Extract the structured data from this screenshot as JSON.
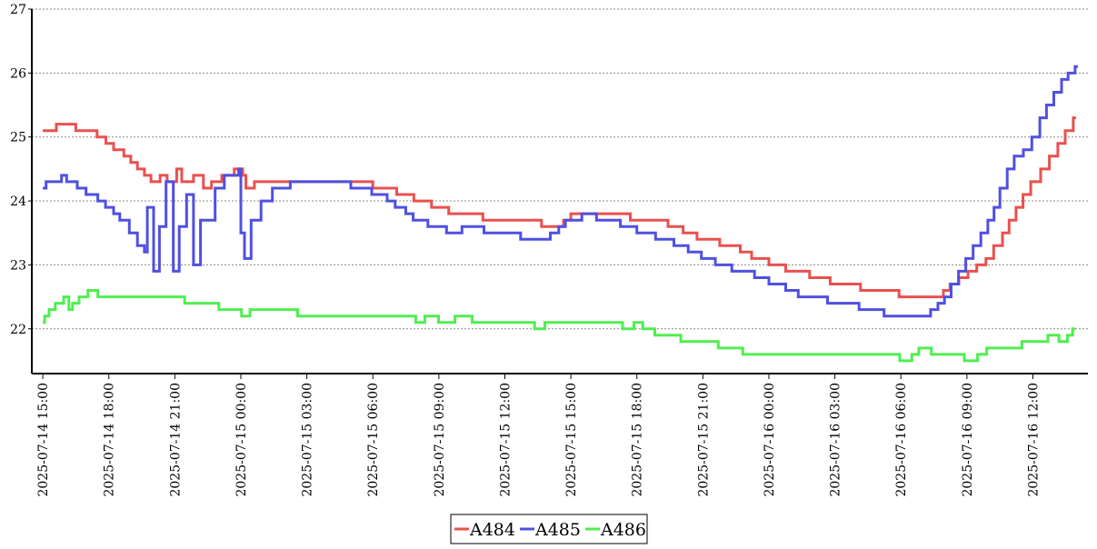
{
  "chart_data": {
    "type": "line",
    "title": "",
    "xlabel": "",
    "ylabel": "",
    "x_range": [
      "2025-07-14 14:30",
      "2025-07-16 14:30"
    ],
    "ylim": [
      21.3,
      27
    ],
    "y_ticks": [
      22,
      23,
      24,
      25,
      26,
      27
    ],
    "x_ticks": [
      {
        "at": "2025-07-14 15:00",
        "label": "2025-07-14 15:00"
      },
      {
        "at": "2025-07-14 18:00",
        "label": "2025-07-14 18:00"
      },
      {
        "at": "2025-07-14 21:00",
        "label": "2025-07-14 21:00"
      },
      {
        "at": "2025-07-15 00:00",
        "label": "2025-07-15 00:00"
      },
      {
        "at": "2025-07-15 03:00",
        "label": "2025-07-15 03:00"
      },
      {
        "at": "2025-07-15 06:00",
        "label": "2025-07-15 06:00"
      },
      {
        "at": "2025-07-15 09:00",
        "label": "2025-07-15 09:00"
      },
      {
        "at": "2025-07-15 12:00",
        "label": "2025-07-15 12:00"
      },
      {
        "at": "2025-07-15 15:00",
        "label": "2025-07-15 15:00"
      },
      {
        "at": "2025-07-15 18:00",
        "label": "2025-07-15 18:00"
      },
      {
        "at": "2025-07-15 21:00",
        "label": "2025-07-15 21:00"
      },
      {
        "at": "2025-07-16 00:00",
        "label": "2025-07-16 00:00"
      },
      {
        "at": "2025-07-16 03:00",
        "label": "2025-07-16 03:00"
      },
      {
        "at": "2025-07-16 06:00",
        "label": "2025-07-16 06:00"
      },
      {
        "at": "2025-07-16 09:00",
        "label": "2025-07-16 09:00"
      },
      {
        "at": "2025-07-16 12:00",
        "label": "2025-07-16 12:00"
      }
    ],
    "grid": {
      "horizontal": true,
      "vertical": false,
      "style": "dotted"
    },
    "legend_position": "bottom-center",
    "series": [
      {
        "name": "A484",
        "color": "#e8514f",
        "points": [
          [
            "2025-07-14 15:00",
            25.1
          ],
          [
            "2025-07-14 15:37",
            25.2
          ],
          [
            "2025-07-14 16:30",
            25.1
          ],
          [
            "2025-07-14 17:28",
            25.0
          ],
          [
            "2025-07-14 17:52",
            24.9
          ],
          [
            "2025-07-14 18:13",
            24.8
          ],
          [
            "2025-07-14 18:41",
            24.7
          ],
          [
            "2025-07-14 19:00",
            24.6
          ],
          [
            "2025-07-14 19:18",
            24.5
          ],
          [
            "2025-07-14 19:37",
            24.4
          ],
          [
            "2025-07-14 19:55",
            24.3
          ],
          [
            "2025-07-14 20:20",
            24.4
          ],
          [
            "2025-07-14 20:39",
            24.3
          ],
          [
            "2025-07-14 21:05",
            24.5
          ],
          [
            "2025-07-14 21:19",
            24.3
          ],
          [
            "2025-07-14 21:51",
            24.4
          ],
          [
            "2025-07-14 22:18",
            24.2
          ],
          [
            "2025-07-14 22:40",
            24.3
          ],
          [
            "2025-07-14 23:08",
            24.4
          ],
          [
            "2025-07-14 23:42",
            24.5
          ],
          [
            "2025-07-15 00:05",
            24.4
          ],
          [
            "2025-07-15 00:14",
            24.2
          ],
          [
            "2025-07-15 00:37",
            24.3
          ],
          [
            "2025-07-15 06:00",
            24.2
          ],
          [
            "2025-07-15 07:05",
            24.1
          ],
          [
            "2025-07-15 07:52",
            24.0
          ],
          [
            "2025-07-15 08:40",
            23.9
          ],
          [
            "2025-07-15 09:27",
            23.8
          ],
          [
            "2025-07-15 11:00",
            23.7
          ],
          [
            "2025-07-15 13:40",
            23.6
          ],
          [
            "2025-07-15 14:40",
            23.7
          ],
          [
            "2025-07-15 15:00",
            23.8
          ],
          [
            "2025-07-15 17:42",
            23.7
          ],
          [
            "2025-07-15 19:25",
            23.6
          ],
          [
            "2025-07-15 20:06",
            23.5
          ],
          [
            "2025-07-15 20:44",
            23.4
          ],
          [
            "2025-07-15 21:46",
            23.3
          ],
          [
            "2025-07-15 22:42",
            23.2
          ],
          [
            "2025-07-15 23:13",
            23.1
          ],
          [
            "2025-07-16 00:00",
            23.0
          ],
          [
            "2025-07-16 00:46",
            22.9
          ],
          [
            "2025-07-16 01:51",
            22.8
          ],
          [
            "2025-07-16 02:47",
            22.7
          ],
          [
            "2025-07-16 04:10",
            22.6
          ],
          [
            "2025-07-16 05:55",
            22.5
          ],
          [
            "2025-07-16 07:56",
            22.6
          ],
          [
            "2025-07-16 08:14",
            22.7
          ],
          [
            "2025-07-16 08:38",
            22.8
          ],
          [
            "2025-07-16 09:03",
            22.9
          ],
          [
            "2025-07-16 09:27",
            23.0
          ],
          [
            "2025-07-16 09:52",
            23.1
          ],
          [
            "2025-07-16 10:13",
            23.3
          ],
          [
            "2025-07-16 10:37",
            23.5
          ],
          [
            "2025-07-16 10:55",
            23.7
          ],
          [
            "2025-07-16 11:14",
            23.9
          ],
          [
            "2025-07-16 11:33",
            24.1
          ],
          [
            "2025-07-16 11:54",
            24.3
          ],
          [
            "2025-07-16 12:21",
            24.5
          ],
          [
            "2025-07-16 12:45",
            24.7
          ],
          [
            "2025-07-16 13:08",
            24.9
          ],
          [
            "2025-07-16 13:28",
            25.1
          ],
          [
            "2025-07-16 13:50",
            25.3
          ]
        ]
      },
      {
        "name": "A485",
        "color": "#5050e0",
        "points": [
          [
            "2025-07-14 15:00",
            24.2
          ],
          [
            "2025-07-14 15:09",
            24.3
          ],
          [
            "2025-07-14 15:51",
            24.4
          ],
          [
            "2025-07-14 16:05",
            24.3
          ],
          [
            "2025-07-14 16:34",
            24.2
          ],
          [
            "2025-07-14 16:58",
            24.1
          ],
          [
            "2025-07-14 17:30",
            24.0
          ],
          [
            "2025-07-14 17:51",
            23.9
          ],
          [
            "2025-07-14 18:13",
            23.8
          ],
          [
            "2025-07-14 18:30",
            23.7
          ],
          [
            "2025-07-14 18:56",
            23.5
          ],
          [
            "2025-07-14 19:18",
            23.3
          ],
          [
            "2025-07-14 19:37",
            23.2
          ],
          [
            "2025-07-14 19:45",
            23.9
          ],
          [
            "2025-07-14 20:02",
            22.9
          ],
          [
            "2025-07-14 20:18",
            23.6
          ],
          [
            "2025-07-14 20:36",
            24.3
          ],
          [
            "2025-07-14 20:56",
            22.9
          ],
          [
            "2025-07-14 21:12",
            23.6
          ],
          [
            "2025-07-14 21:32",
            24.1
          ],
          [
            "2025-07-14 21:51",
            23.0
          ],
          [
            "2025-07-14 22:10",
            23.7
          ],
          [
            "2025-07-14 22:50",
            24.2
          ],
          [
            "2025-07-14 23:15",
            24.4
          ],
          [
            "2025-07-14 23:54",
            24.5
          ],
          [
            "2025-07-15 00:00",
            23.5
          ],
          [
            "2025-07-15 00:10",
            23.1
          ],
          [
            "2025-07-15 00:28",
            23.7
          ],
          [
            "2025-07-15 00:55",
            24.0
          ],
          [
            "2025-07-15 01:26",
            24.2
          ],
          [
            "2025-07-15 02:15",
            24.3
          ],
          [
            "2025-07-15 05:00",
            24.2
          ],
          [
            "2025-07-15 05:57",
            24.1
          ],
          [
            "2025-07-15 06:39",
            24.0
          ],
          [
            "2025-07-15 07:01",
            23.9
          ],
          [
            "2025-07-15 07:30",
            23.8
          ],
          [
            "2025-07-15 07:50",
            23.7
          ],
          [
            "2025-07-15 08:30",
            23.6
          ],
          [
            "2025-07-15 09:21",
            23.5
          ],
          [
            "2025-07-15 10:03",
            23.6
          ],
          [
            "2025-07-15 11:03",
            23.5
          ],
          [
            "2025-07-15 12:43",
            23.4
          ],
          [
            "2025-07-15 14:04",
            23.5
          ],
          [
            "2025-07-15 14:27",
            23.6
          ],
          [
            "2025-07-15 14:45",
            23.7
          ],
          [
            "2025-07-15 15:30",
            23.8
          ],
          [
            "2025-07-15 16:10",
            23.7
          ],
          [
            "2025-07-15 17:15",
            23.6
          ],
          [
            "2025-07-15 18:00",
            23.5
          ],
          [
            "2025-07-15 18:51",
            23.4
          ],
          [
            "2025-07-15 19:41",
            23.3
          ],
          [
            "2025-07-15 20:20",
            23.2
          ],
          [
            "2025-07-15 20:56",
            23.1
          ],
          [
            "2025-07-15 21:34",
            23.0
          ],
          [
            "2025-07-15 22:19",
            22.9
          ],
          [
            "2025-07-15 23:21",
            22.8
          ],
          [
            "2025-07-16 00:00",
            22.7
          ],
          [
            "2025-07-16 00:46",
            22.6
          ],
          [
            "2025-07-16 01:20",
            22.5
          ],
          [
            "2025-07-16 02:40",
            22.4
          ],
          [
            "2025-07-16 04:06",
            22.3
          ],
          [
            "2025-07-16 05:14",
            22.2
          ],
          [
            "2025-07-16 07:21",
            22.3
          ],
          [
            "2025-07-16 07:41",
            22.4
          ],
          [
            "2025-07-16 07:59",
            22.5
          ],
          [
            "2025-07-16 08:17",
            22.7
          ],
          [
            "2025-07-16 08:37",
            22.9
          ],
          [
            "2025-07-16 08:57",
            23.1
          ],
          [
            "2025-07-16 09:17",
            23.3
          ],
          [
            "2025-07-16 09:38",
            23.5
          ],
          [
            "2025-07-16 09:57",
            23.7
          ],
          [
            "2025-07-16 10:14",
            23.9
          ],
          [
            "2025-07-16 10:30",
            24.2
          ],
          [
            "2025-07-16 10:50",
            24.5
          ],
          [
            "2025-07-16 11:09",
            24.7
          ],
          [
            "2025-07-16 11:34",
            24.8
          ],
          [
            "2025-07-16 11:57",
            25.0
          ],
          [
            "2025-07-16 12:19",
            25.3
          ],
          [
            "2025-07-16 12:37",
            25.5
          ],
          [
            "2025-07-16 12:57",
            25.7
          ],
          [
            "2025-07-16 13:18",
            25.9
          ],
          [
            "2025-07-16 13:36",
            26.0
          ],
          [
            "2025-07-16 13:55",
            26.1
          ]
        ]
      },
      {
        "name": "A486",
        "color": "#50ee50",
        "points": [
          [
            "2025-07-14 15:00",
            22.1
          ],
          [
            "2025-07-14 15:05",
            22.2
          ],
          [
            "2025-07-14 15:17",
            22.3
          ],
          [
            "2025-07-14 15:34",
            22.4
          ],
          [
            "2025-07-14 15:57",
            22.5
          ],
          [
            "2025-07-14 16:11",
            22.3
          ],
          [
            "2025-07-14 16:21",
            22.4
          ],
          [
            "2025-07-14 16:39",
            22.5
          ],
          [
            "2025-07-14 17:03",
            22.6
          ],
          [
            "2025-07-14 17:30",
            22.5
          ],
          [
            "2025-07-14 21:27",
            22.4
          ],
          [
            "2025-07-14 22:13",
            22.4
          ],
          [
            "2025-07-14 23:00",
            22.3
          ],
          [
            "2025-07-15 00:02",
            22.2
          ],
          [
            "2025-07-15 00:25",
            22.3
          ],
          [
            "2025-07-15 02:35",
            22.2
          ],
          [
            "2025-07-15 07:57",
            22.1
          ],
          [
            "2025-07-15 08:22",
            22.2
          ],
          [
            "2025-07-15 08:59",
            22.1
          ],
          [
            "2025-07-15 09:44",
            22.2
          ],
          [
            "2025-07-15 10:31",
            22.1
          ],
          [
            "2025-07-15 13:21",
            22.0
          ],
          [
            "2025-07-15 13:49",
            22.1
          ],
          [
            "2025-07-15 17:21",
            22.0
          ],
          [
            "2025-07-15 17:52",
            22.1
          ],
          [
            "2025-07-15 18:16",
            22.0
          ],
          [
            "2025-07-15 18:49",
            21.9
          ],
          [
            "2025-07-15 19:27",
            21.9
          ],
          [
            "2025-07-15 20:00",
            21.8
          ],
          [
            "2025-07-15 21:42",
            21.7
          ],
          [
            "2025-07-15 22:49",
            21.6
          ],
          [
            "2025-07-15 23:16",
            21.6
          ],
          [
            "2025-07-16 01:43",
            21.6
          ],
          [
            "2025-07-16 02:38",
            21.6
          ],
          [
            "2025-07-16 05:04",
            21.6
          ],
          [
            "2025-07-16 05:57",
            21.5
          ],
          [
            "2025-07-16 06:30",
            21.6
          ],
          [
            "2025-07-16 06:49",
            21.7
          ],
          [
            "2025-07-16 07:23",
            21.6
          ],
          [
            "2025-07-16 08:36",
            21.6
          ],
          [
            "2025-07-16 08:53",
            21.5
          ],
          [
            "2025-07-16 09:29",
            21.6
          ],
          [
            "2025-07-16 09:54",
            21.7
          ],
          [
            "2025-07-16 10:25",
            21.7
          ],
          [
            "2025-07-16 10:50",
            21.7
          ],
          [
            "2025-07-16 11:30",
            21.8
          ],
          [
            "2025-07-16 12:41",
            21.9
          ],
          [
            "2025-07-16 13:11",
            21.8
          ],
          [
            "2025-07-16 13:34",
            21.9
          ],
          [
            "2025-07-16 13:48",
            22.0
          ]
        ]
      }
    ]
  }
}
